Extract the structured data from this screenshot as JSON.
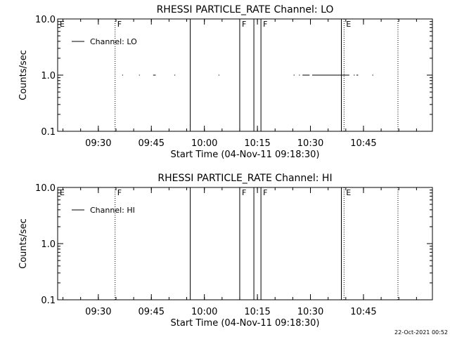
{
  "page": {
    "timestamp": "22-Oct-2021 00:52"
  },
  "chart_data": [
    {
      "type": "line",
      "title": "RHESSI PARTICLE_RATE Channel: LO",
      "xlabel": "Start Time (04-Nov-11 09:18:30)",
      "ylabel": "Counts/sec",
      "y_scale": "log",
      "ylim": [
        0.1,
        10.0
      ],
      "y_ticks": [
        "0.1",
        "1.0",
        "10.0"
      ],
      "xlim": [
        "09:18:30",
        "11:04:30"
      ],
      "x_ticks": [
        "09:30",
        "09:45",
        "10:00",
        "10:15",
        "10:30",
        "10:45"
      ],
      "legend": {
        "position": "top-left",
        "entries": [
          "Channel: LO"
        ]
      },
      "series": [
        {
          "name": "Channel: LO",
          "segments": [
            {
              "x": [
                "09:36:45",
                "09:37:00"
              ],
              "y": [
                1.0,
                1.0
              ]
            },
            {
              "x": [
                "09:41:30",
                "09:41:45"
              ],
              "y": [
                1.0,
                1.0
              ]
            },
            {
              "x": [
                "09:45:30",
                "09:46:15"
              ],
              "y": [
                1.0,
                1.0
              ]
            },
            {
              "x": [
                "09:51:30",
                "09:51:45"
              ],
              "y": [
                1.0,
                1.0
              ]
            },
            {
              "x": [
                "10:04:00",
                "10:04:15"
              ],
              "y": [
                1.0,
                1.0
              ]
            },
            {
              "x": [
                "10:25:15",
                "10:25:30"
              ],
              "y": [
                1.0,
                1.0
              ]
            },
            {
              "x": [
                "10:26:45",
                "10:27:00"
              ],
              "y": [
                1.0,
                1.0
              ]
            },
            {
              "x": [
                "10:27:45",
                "10:29:45"
              ],
              "y": [
                1.0,
                1.0
              ]
            },
            {
              "x": [
                "10:30:30",
                "10:41:00"
              ],
              "y": [
                1.0,
                1.0
              ]
            },
            {
              "x": [
                "10:42:15",
                "10:42:30"
              ],
              "y": [
                1.0,
                1.0
              ]
            },
            {
              "x": [
                "10:43:00",
                "10:43:30"
              ],
              "y": [
                1.0,
                1.0
              ]
            },
            {
              "x": [
                "10:47:30",
                "10:47:45"
              ],
              "y": [
                1.0,
                1.0
              ]
            }
          ]
        }
      ],
      "markers": [
        {
          "time": "09:18:30",
          "label": "E",
          "style": "solid"
        },
        {
          "time": "09:34:45",
          "label": "F",
          "style": "dotted"
        },
        {
          "time": "09:56:00",
          "label": "",
          "style": "solid"
        },
        {
          "time": "10:10:00",
          "label": "F",
          "style": "solid"
        },
        {
          "time": "10:14:00",
          "label": "",
          "style": "solid"
        },
        {
          "time": "10:16:00",
          "label": "F",
          "style": "solid"
        },
        {
          "time": "10:38:45",
          "label": "",
          "style": "solid"
        },
        {
          "time": "10:39:30",
          "label": "E",
          "style": "dotted"
        },
        {
          "time": "10:54:45",
          "label": "",
          "style": "dotted"
        }
      ]
    },
    {
      "type": "line",
      "title": "RHESSI PARTICLE_RATE Channel: HI",
      "xlabel": "Start Time (04-Nov-11 09:18:30)",
      "ylabel": "Counts/sec",
      "y_scale": "log",
      "ylim": [
        0.1,
        10.0
      ],
      "y_ticks": [
        "0.1",
        "1.0",
        "10.0"
      ],
      "xlim": [
        "09:18:30",
        "11:04:30"
      ],
      "x_ticks": [
        "09:30",
        "09:45",
        "10:00",
        "10:15",
        "10:30",
        "10:45"
      ],
      "legend": {
        "position": "top-left",
        "entries": [
          "Channel: HI"
        ]
      },
      "series": [
        {
          "name": "Channel: HI",
          "segments": []
        }
      ],
      "markers": [
        {
          "time": "09:18:30",
          "label": "E",
          "style": "solid"
        },
        {
          "time": "09:34:45",
          "label": "F",
          "style": "dotted"
        },
        {
          "time": "09:56:00",
          "label": "",
          "style": "solid"
        },
        {
          "time": "10:10:00",
          "label": "F",
          "style": "solid"
        },
        {
          "time": "10:14:00",
          "label": "",
          "style": "solid"
        },
        {
          "time": "10:16:00",
          "label": "F",
          "style": "solid"
        },
        {
          "time": "10:38:45",
          "label": "",
          "style": "solid"
        },
        {
          "time": "10:39:30",
          "label": "E",
          "style": "dotted"
        },
        {
          "time": "10:54:45",
          "label": "",
          "style": "dotted"
        }
      ]
    }
  ]
}
